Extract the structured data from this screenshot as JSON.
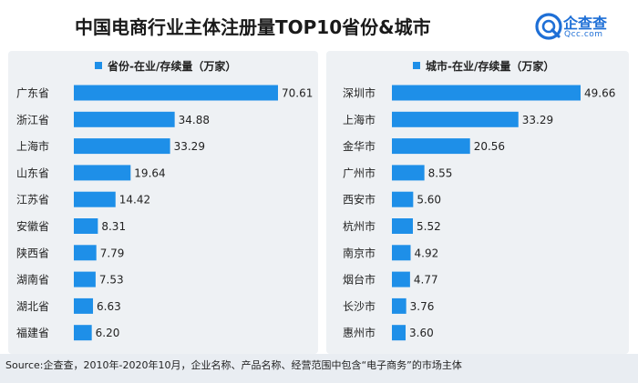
{
  "title": "中国电商行业主体注册量TOP10省份&城市",
  "logo": {
    "name": "企查查",
    "sub": "Qcc.com",
    "icon": "qcc-logo-icon"
  },
  "source": "Source:企查查，2010年-2020年10月，企业名称、产品名称、经营范围中包含“电子商务”的市场主体",
  "colors": {
    "bar": "#1e8fe8",
    "panel": "#eef1f4"
  },
  "chart_data": [
    {
      "type": "bar",
      "orientation": "horizontal",
      "legend": "省份-在业/存续量（万家）",
      "categories": [
        "广东省",
        "浙江省",
        "上海市",
        "山东省",
        "江苏省",
        "安徽省",
        "陕西省",
        "湖南省",
        "湖北省",
        "福建省"
      ],
      "values": [
        70.61,
        34.88,
        33.29,
        19.64,
        14.42,
        8.31,
        7.79,
        7.53,
        6.63,
        6.2
      ],
      "labels": [
        "70.61",
        "34.88",
        "33.29",
        "19.64",
        "14.42",
        "8.31",
        "7.79",
        "7.53",
        "6.63",
        "6.20"
      ],
      "xlim": [
        0,
        70.61
      ]
    },
    {
      "type": "bar",
      "orientation": "horizontal",
      "legend": "城市-在业/存续量（万家）",
      "categories": [
        "深圳市",
        "上海市",
        "金华市",
        "广州市",
        "西安市",
        "杭州市",
        "南京市",
        "烟台市",
        "长沙市",
        "惠州市"
      ],
      "values": [
        49.66,
        33.29,
        20.56,
        8.55,
        5.6,
        5.52,
        4.92,
        4.77,
        3.76,
        3.6
      ],
      "labels": [
        "49.66",
        "33.29",
        "20.56",
        "8.55",
        "5.60",
        "5.52",
        "4.92",
        "4.77",
        "3.76",
        "3.60"
      ],
      "xlim": [
        0,
        49.66
      ]
    }
  ]
}
